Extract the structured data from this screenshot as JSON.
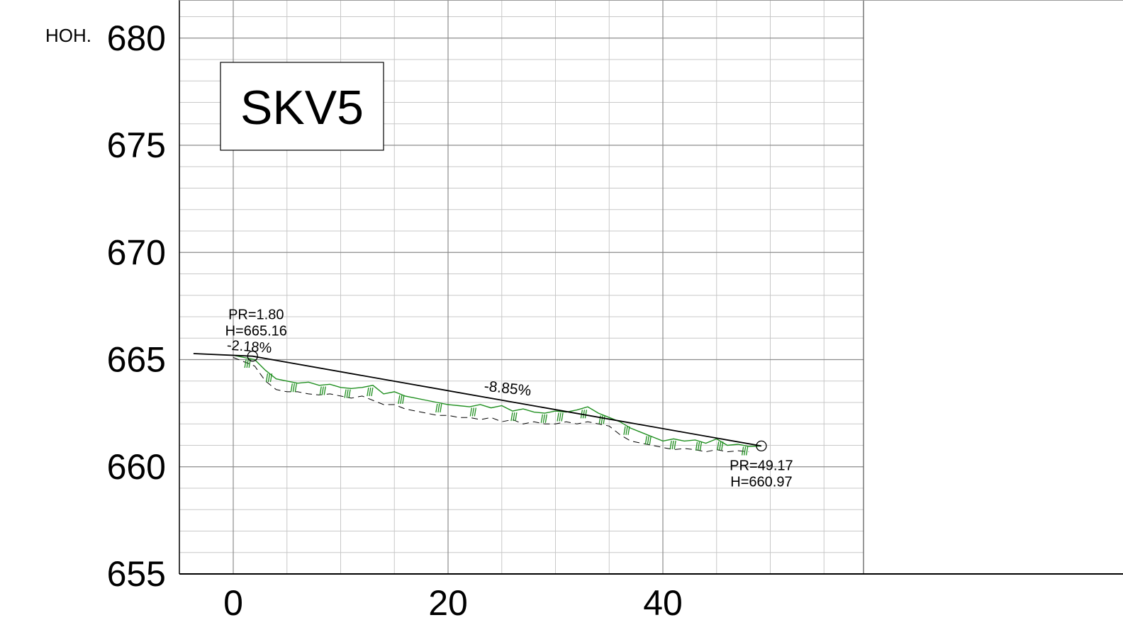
{
  "chart_data": {
    "type": "line",
    "title": "SKV5",
    "ylabel": "HOH.",
    "xlabel": "",
    "xlim": [
      -2.5,
      61
    ],
    "ylim": [
      655,
      681.8
    ],
    "x_ticks": [
      "0",
      "20",
      "40"
    ],
    "x_tick_values": [
      0,
      20,
      40
    ],
    "y_ticks": [
      "655",
      "660",
      "665",
      "670",
      "675",
      "680"
    ],
    "y_tick_values": [
      655,
      660,
      665,
      670,
      675,
      680
    ],
    "grid": true,
    "colors": {
      "ground": "#1f8f1f",
      "design": "#000000",
      "lower": "#000000",
      "grid_major": "#8c8c8c",
      "grid_minor": "#c8c8c8"
    },
    "series": [
      {
        "role": "design-line",
        "x": [
          -3.7,
          1.8,
          49.17
        ],
        "y": [
          665.28,
          665.16,
          660.97
        ]
      },
      {
        "role": "ground-profile",
        "x": [
          0,
          1,
          2,
          3,
          4,
          5,
          6,
          7,
          8,
          9,
          10,
          11,
          12,
          13,
          14,
          15,
          16,
          17,
          18,
          19,
          20,
          21,
          22,
          23,
          24,
          25,
          26,
          27,
          28,
          29,
          30,
          31,
          32,
          33,
          34,
          35,
          36,
          37,
          38,
          39,
          40,
          41,
          42,
          43,
          44,
          45,
          46,
          47,
          48,
          49.17
        ],
        "y": [
          665.2,
          665.1,
          665.0,
          664.5,
          664.1,
          664.0,
          663.9,
          663.95,
          663.8,
          663.85,
          663.7,
          663.65,
          663.7,
          663.8,
          663.4,
          663.5,
          663.3,
          663.2,
          663.1,
          663.0,
          662.9,
          662.85,
          662.8,
          662.9,
          662.75,
          662.85,
          662.6,
          662.7,
          662.55,
          662.5,
          662.6,
          662.55,
          662.65,
          662.8,
          662.5,
          662.3,
          662.1,
          661.8,
          661.6,
          661.4,
          661.2,
          661.3,
          661.2,
          661.25,
          661.1,
          661.3,
          661.0,
          661.05,
          660.95,
          660.97
        ]
      },
      {
        "role": "lower-profile",
        "x": [
          0,
          1,
          2,
          3,
          4,
          5,
          6,
          7,
          8,
          9,
          10,
          11,
          12,
          13,
          14,
          15,
          16,
          17,
          18,
          19,
          20,
          21,
          22,
          23,
          24,
          25,
          26,
          27,
          28,
          29,
          30,
          31,
          32,
          33,
          34,
          35,
          36,
          37,
          38,
          39,
          40,
          41,
          42,
          43,
          44,
          45,
          46,
          47,
          48
        ],
        "y": [
          665.1,
          664.9,
          664.7,
          664.0,
          663.6,
          663.5,
          663.5,
          663.4,
          663.35,
          663.4,
          663.3,
          663.2,
          663.3,
          663.1,
          662.9,
          662.9,
          662.7,
          662.6,
          662.5,
          662.4,
          662.4,
          662.3,
          662.3,
          662.2,
          662.3,
          662.1,
          662.2,
          662.0,
          662.1,
          662.0,
          662.0,
          662.1,
          662.0,
          662.1,
          662.0,
          661.9,
          661.5,
          661.2,
          661.1,
          661.0,
          660.9,
          660.8,
          660.85,
          660.8,
          660.7,
          660.8,
          660.7,
          660.75,
          660.7
        ]
      }
    ],
    "annotations": [
      {
        "text": "PR=1.80",
        "x": 1.8,
        "y": 665.16
      },
      {
        "text": "H=665.16",
        "x": 1.8,
        "y": 665.16
      },
      {
        "text": "-2.18%",
        "x": 1.8,
        "y": 665.16
      },
      {
        "text": "-8.85%",
        "x": 25.5,
        "y": 663.3
      },
      {
        "text": "PR=49.17",
        "x": 49.17,
        "y": 660.97
      },
      {
        "text": "H=660.97",
        "x": 49.17,
        "y": 660.97
      }
    ],
    "hatch_x": [
      1.2,
      3.2,
      5.5,
      8.2,
      10.5,
      12.6,
      15.5,
      19.0,
      22.2,
      26.0,
      28.8,
      30.3,
      32.5,
      34.2,
      36.5,
      38.5,
      40.8,
      43.2,
      45.2,
      47.5
    ]
  }
}
